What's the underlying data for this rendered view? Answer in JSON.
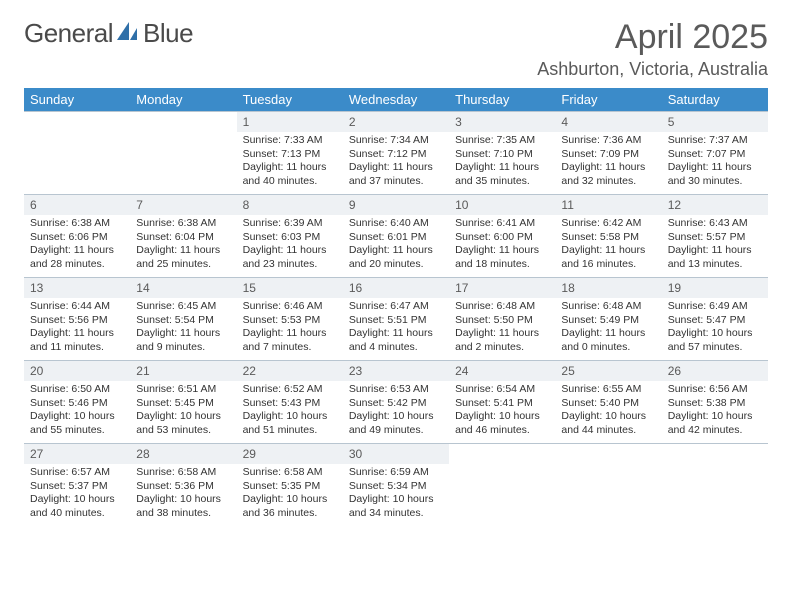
{
  "logo": {
    "text1": "General",
    "text2": "Blue"
  },
  "title": "April 2025",
  "location": "Ashburton, Victoria, Australia",
  "header_bg": "#3b8bc9",
  "day_headers": [
    "Sunday",
    "Monday",
    "Tuesday",
    "Wednesday",
    "Thursday",
    "Friday",
    "Saturday"
  ],
  "weeks": [
    [
      {
        "n": "",
        "sr": "",
        "ss": "",
        "dl": ""
      },
      {
        "n": "",
        "sr": "",
        "ss": "",
        "dl": ""
      },
      {
        "n": "1",
        "sr": "Sunrise: 7:33 AM",
        "ss": "Sunset: 7:13 PM",
        "dl": "Daylight: 11 hours and 40 minutes."
      },
      {
        "n": "2",
        "sr": "Sunrise: 7:34 AM",
        "ss": "Sunset: 7:12 PM",
        "dl": "Daylight: 11 hours and 37 minutes."
      },
      {
        "n": "3",
        "sr": "Sunrise: 7:35 AM",
        "ss": "Sunset: 7:10 PM",
        "dl": "Daylight: 11 hours and 35 minutes."
      },
      {
        "n": "4",
        "sr": "Sunrise: 7:36 AM",
        "ss": "Sunset: 7:09 PM",
        "dl": "Daylight: 11 hours and 32 minutes."
      },
      {
        "n": "5",
        "sr": "Sunrise: 7:37 AM",
        "ss": "Sunset: 7:07 PM",
        "dl": "Daylight: 11 hours and 30 minutes."
      }
    ],
    [
      {
        "n": "6",
        "sr": "Sunrise: 6:38 AM",
        "ss": "Sunset: 6:06 PM",
        "dl": "Daylight: 11 hours and 28 minutes."
      },
      {
        "n": "7",
        "sr": "Sunrise: 6:38 AM",
        "ss": "Sunset: 6:04 PM",
        "dl": "Daylight: 11 hours and 25 minutes."
      },
      {
        "n": "8",
        "sr": "Sunrise: 6:39 AM",
        "ss": "Sunset: 6:03 PM",
        "dl": "Daylight: 11 hours and 23 minutes."
      },
      {
        "n": "9",
        "sr": "Sunrise: 6:40 AM",
        "ss": "Sunset: 6:01 PM",
        "dl": "Daylight: 11 hours and 20 minutes."
      },
      {
        "n": "10",
        "sr": "Sunrise: 6:41 AM",
        "ss": "Sunset: 6:00 PM",
        "dl": "Daylight: 11 hours and 18 minutes."
      },
      {
        "n": "11",
        "sr": "Sunrise: 6:42 AM",
        "ss": "Sunset: 5:58 PM",
        "dl": "Daylight: 11 hours and 16 minutes."
      },
      {
        "n": "12",
        "sr": "Sunrise: 6:43 AM",
        "ss": "Sunset: 5:57 PM",
        "dl": "Daylight: 11 hours and 13 minutes."
      }
    ],
    [
      {
        "n": "13",
        "sr": "Sunrise: 6:44 AM",
        "ss": "Sunset: 5:56 PM",
        "dl": "Daylight: 11 hours and 11 minutes."
      },
      {
        "n": "14",
        "sr": "Sunrise: 6:45 AM",
        "ss": "Sunset: 5:54 PM",
        "dl": "Daylight: 11 hours and 9 minutes."
      },
      {
        "n": "15",
        "sr": "Sunrise: 6:46 AM",
        "ss": "Sunset: 5:53 PM",
        "dl": "Daylight: 11 hours and 7 minutes."
      },
      {
        "n": "16",
        "sr": "Sunrise: 6:47 AM",
        "ss": "Sunset: 5:51 PM",
        "dl": "Daylight: 11 hours and 4 minutes."
      },
      {
        "n": "17",
        "sr": "Sunrise: 6:48 AM",
        "ss": "Sunset: 5:50 PM",
        "dl": "Daylight: 11 hours and 2 minutes."
      },
      {
        "n": "18",
        "sr": "Sunrise: 6:48 AM",
        "ss": "Sunset: 5:49 PM",
        "dl": "Daylight: 11 hours and 0 minutes."
      },
      {
        "n": "19",
        "sr": "Sunrise: 6:49 AM",
        "ss": "Sunset: 5:47 PM",
        "dl": "Daylight: 10 hours and 57 minutes."
      }
    ],
    [
      {
        "n": "20",
        "sr": "Sunrise: 6:50 AM",
        "ss": "Sunset: 5:46 PM",
        "dl": "Daylight: 10 hours and 55 minutes."
      },
      {
        "n": "21",
        "sr": "Sunrise: 6:51 AM",
        "ss": "Sunset: 5:45 PM",
        "dl": "Daylight: 10 hours and 53 minutes."
      },
      {
        "n": "22",
        "sr": "Sunrise: 6:52 AM",
        "ss": "Sunset: 5:43 PM",
        "dl": "Daylight: 10 hours and 51 minutes."
      },
      {
        "n": "23",
        "sr": "Sunrise: 6:53 AM",
        "ss": "Sunset: 5:42 PM",
        "dl": "Daylight: 10 hours and 49 minutes."
      },
      {
        "n": "24",
        "sr": "Sunrise: 6:54 AM",
        "ss": "Sunset: 5:41 PM",
        "dl": "Daylight: 10 hours and 46 minutes."
      },
      {
        "n": "25",
        "sr": "Sunrise: 6:55 AM",
        "ss": "Sunset: 5:40 PM",
        "dl": "Daylight: 10 hours and 44 minutes."
      },
      {
        "n": "26",
        "sr": "Sunrise: 6:56 AM",
        "ss": "Sunset: 5:38 PM",
        "dl": "Daylight: 10 hours and 42 minutes."
      }
    ],
    [
      {
        "n": "27",
        "sr": "Sunrise: 6:57 AM",
        "ss": "Sunset: 5:37 PM",
        "dl": "Daylight: 10 hours and 40 minutes."
      },
      {
        "n": "28",
        "sr": "Sunrise: 6:58 AM",
        "ss": "Sunset: 5:36 PM",
        "dl": "Daylight: 10 hours and 38 minutes."
      },
      {
        "n": "29",
        "sr": "Sunrise: 6:58 AM",
        "ss": "Sunset: 5:35 PM",
        "dl": "Daylight: 10 hours and 36 minutes."
      },
      {
        "n": "30",
        "sr": "Sunrise: 6:59 AM",
        "ss": "Sunset: 5:34 PM",
        "dl": "Daylight: 10 hours and 34 minutes."
      },
      {
        "n": "",
        "sr": "",
        "ss": "",
        "dl": ""
      },
      {
        "n": "",
        "sr": "",
        "ss": "",
        "dl": ""
      },
      {
        "n": "",
        "sr": "",
        "ss": "",
        "dl": ""
      }
    ]
  ]
}
